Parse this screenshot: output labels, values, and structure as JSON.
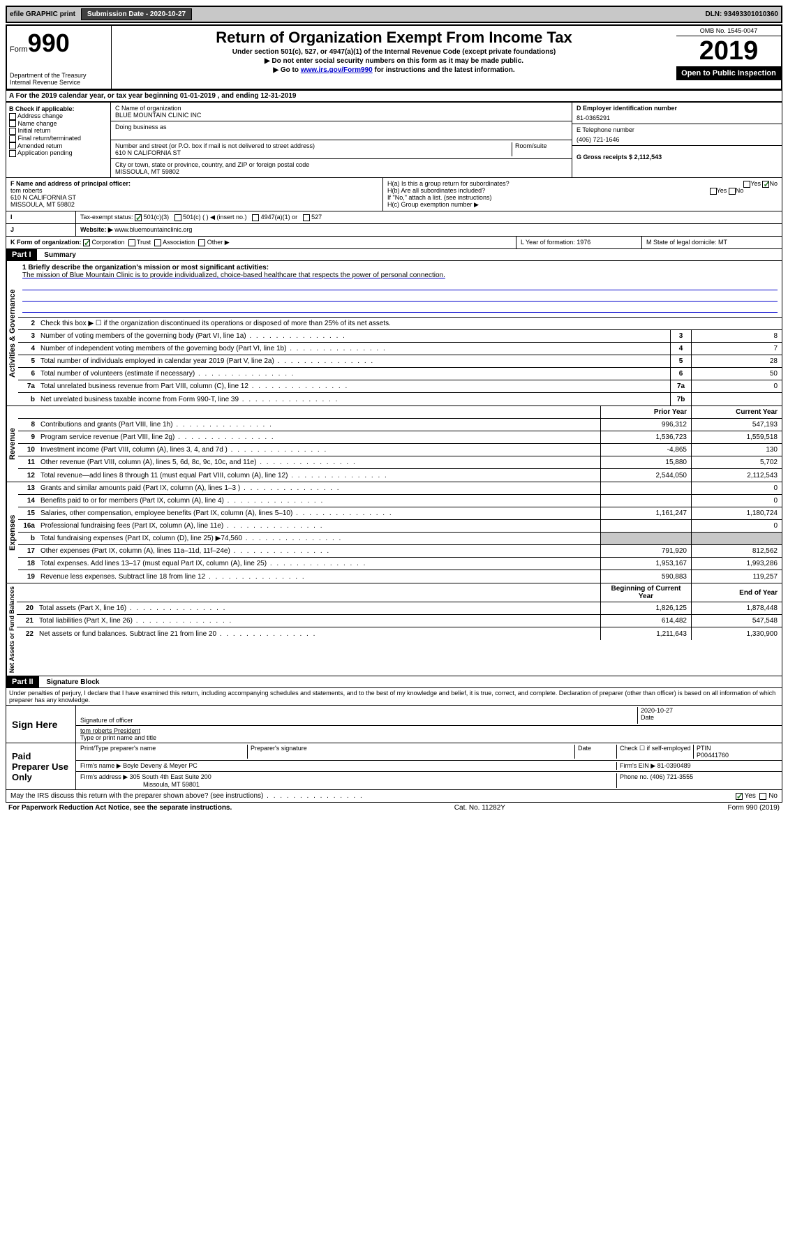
{
  "topbar": {
    "efile": "efile GRAPHIC print",
    "submission_label": "Submission Date - 2020-10-27",
    "dln_label": "DLN: 93493301010360"
  },
  "header": {
    "form_label": "Form",
    "form_number": "990",
    "dept": "Department of the Treasury",
    "irs": "Internal Revenue Service",
    "title": "Return of Organization Exempt From Income Tax",
    "subtitle1": "Under section 501(c), 527, or 4947(a)(1) of the Internal Revenue Code (except private foundations)",
    "subtitle2": "▶ Do not enter social security numbers on this form as it may be made public.",
    "subtitle3_pre": "▶ Go to ",
    "subtitle3_link": "www.irs.gov/Form990",
    "subtitle3_post": " for instructions and the latest information.",
    "omb": "OMB No. 1545-0047",
    "year": "2019",
    "open": "Open to Public Inspection"
  },
  "section_a": "A For the 2019 calendar year, or tax year beginning 01-01-2019    , and ending 12-31-2019",
  "box_b": {
    "label": "B Check if applicable:",
    "items": [
      "Address change",
      "Name change",
      "Initial return",
      "Final return/terminated",
      "Amended return",
      "Application pending"
    ]
  },
  "box_c": {
    "name_label": "C Name of organization",
    "name": "BLUE MOUNTAIN CLINIC INC",
    "dba_label": "Doing business as",
    "addr_label": "Number and street (or P.O. box if mail is not delivered to street address)",
    "room_label": "Room/suite",
    "addr": "610 N CALIFORNIA ST",
    "city_label": "City or town, state or province, country, and ZIP or foreign postal code",
    "city": "MISSOULA, MT  59802"
  },
  "box_d": {
    "ein_label": "D Employer identification number",
    "ein": "81-0365291",
    "phone_label": "E Telephone number",
    "phone": "(406) 721-1646",
    "gross_label": "G Gross receipts $ 2,112,543"
  },
  "box_f": {
    "label": "F Name and address of principal officer:",
    "name": "tom roberts",
    "addr1": "610 N CALIFORNIA ST",
    "addr2": "MISSOULA, MT  59802"
  },
  "box_h": {
    "ha": "H(a)  Is this a group return for subordinates?",
    "hb": "H(b)  Are all subordinates included?",
    "hb_note": "If \"No,\" attach a list. (see instructions)",
    "hc": "H(c)  Group exemption number ▶",
    "yes": "Yes",
    "no": "No"
  },
  "box_i": {
    "label": "Tax-exempt status:",
    "opt1": "501(c)(3)",
    "opt2": "501(c) (   ) ◀ (insert no.)",
    "opt3": "4947(a)(1) or",
    "opt4": "527"
  },
  "box_j": {
    "label": "Website: ▶",
    "url": "www.bluemountainclinic.org"
  },
  "box_k": {
    "label": "K Form of organization:",
    "corp": "Corporation",
    "trust": "Trust",
    "assoc": "Association",
    "other": "Other ▶"
  },
  "box_l": {
    "label": "L Year of formation: 1976"
  },
  "box_m": {
    "label": "M State of legal domicile: MT"
  },
  "part1": {
    "header": "Part I",
    "title": "Summary",
    "line1_label": "1  Briefly describe the organization's mission or most significant activities:",
    "mission": "The mission of Blue Mountain Clinic is to provide individualized, choice-based healthcare that respects the power of personal connection.",
    "line2": "Check this box ▶ ☐  if the organization discontinued its operations or disposed of more than 25% of its net assets.",
    "lines_gov": [
      {
        "n": "3",
        "t": "Number of voting members of the governing body (Part VI, line 1a)",
        "b": "3",
        "v": "8"
      },
      {
        "n": "4",
        "t": "Number of independent voting members of the governing body (Part VI, line 1b)",
        "b": "4",
        "v": "7"
      },
      {
        "n": "5",
        "t": "Total number of individuals employed in calendar year 2019 (Part V, line 2a)",
        "b": "5",
        "v": "28"
      },
      {
        "n": "6",
        "t": "Total number of volunteers (estimate if necessary)",
        "b": "6",
        "v": "50"
      },
      {
        "n": "7a",
        "t": "Total unrelated business revenue from Part VIII, column (C), line 12",
        "b": "7a",
        "v": "0"
      },
      {
        "n": "b",
        "t": "Net unrelated business taxable income from Form 990-T, line 39",
        "b": "7b",
        "v": ""
      }
    ],
    "col_prior": "Prior Year",
    "col_current": "Current Year",
    "lines_rev": [
      {
        "n": "8",
        "t": "Contributions and grants (Part VIII, line 1h)",
        "p": "996,312",
        "c": "547,193"
      },
      {
        "n": "9",
        "t": "Program service revenue (Part VIII, line 2g)",
        "p": "1,536,723",
        "c": "1,559,518"
      },
      {
        "n": "10",
        "t": "Investment income (Part VIII, column (A), lines 3, 4, and 7d )",
        "p": "-4,865",
        "c": "130"
      },
      {
        "n": "11",
        "t": "Other revenue (Part VIII, column (A), lines 5, 6d, 8c, 9c, 10c, and 11e)",
        "p": "15,880",
        "c": "5,702"
      },
      {
        "n": "12",
        "t": "Total revenue—add lines 8 through 11 (must equal Part VIII, column (A), line 12)",
        "p": "2,544,050",
        "c": "2,112,543"
      }
    ],
    "lines_exp": [
      {
        "n": "13",
        "t": "Grants and similar amounts paid (Part IX, column (A), lines 1–3 )",
        "p": "",
        "c": "0"
      },
      {
        "n": "14",
        "t": "Benefits paid to or for members (Part IX, column (A), line 4)",
        "p": "",
        "c": "0"
      },
      {
        "n": "15",
        "t": "Salaries, other compensation, employee benefits (Part IX, column (A), lines 5–10)",
        "p": "1,161,247",
        "c": "1,180,724"
      },
      {
        "n": "16a",
        "t": "Professional fundraising fees (Part IX, column (A), line 11e)",
        "p": "",
        "c": "0"
      },
      {
        "n": "b",
        "t": "Total fundraising expenses (Part IX, column (D), line 25) ▶74,560",
        "p": "",
        "c": ""
      },
      {
        "n": "17",
        "t": "Other expenses (Part IX, column (A), lines 11a–11d, 11f–24e)",
        "p": "791,920",
        "c": "812,562"
      },
      {
        "n": "18",
        "t": "Total expenses. Add lines 13–17 (must equal Part IX, column (A), line 25)",
        "p": "1,953,167",
        "c": "1,993,286"
      },
      {
        "n": "19",
        "t": "Revenue less expenses. Subtract line 18 from line 12",
        "p": "590,883",
        "c": "119,257"
      }
    ],
    "col_begin": "Beginning of Current Year",
    "col_end": "End of Year",
    "lines_net": [
      {
        "n": "20",
        "t": "Total assets (Part X, line 16)",
        "p": "1,826,125",
        "c": "1,878,448"
      },
      {
        "n": "21",
        "t": "Total liabilities (Part X, line 26)",
        "p": "614,482",
        "c": "547,548"
      },
      {
        "n": "22",
        "t": "Net assets or fund balances. Subtract line 21 from line 20",
        "p": "1,211,643",
        "c": "1,330,900"
      }
    ]
  },
  "part2": {
    "header": "Part II",
    "title": "Signature Block",
    "declaration": "Under penalties of perjury, I declare that I have examined this return, including accompanying schedules and statements, and to the best of my knowledge and belief, it is true, correct, and complete. Declaration of preparer (other than officer) is based on all information of which preparer has any knowledge."
  },
  "sign": {
    "label": "Sign Here",
    "sig_officer": "Signature of officer",
    "date": "2020-10-27",
    "date_label": "Date",
    "name": "tom roberts  President",
    "name_label": "Type or print name and title"
  },
  "preparer": {
    "label": "Paid Preparer Use Only",
    "print_label": "Print/Type preparer's name",
    "sig_label": "Preparer's signature",
    "date_label": "Date",
    "check_label": "Check ☐ if self-employed",
    "ptin_label": "PTIN",
    "ptin": "P00441760",
    "firm_name_label": "Firm's name    ▶",
    "firm_name": "Boyle Deveny & Meyer PC",
    "firm_ein_label": "Firm's EIN ▶ 81-0390489",
    "firm_addr_label": "Firm's address ▶",
    "firm_addr1": "305 South 4th East Suite 200",
    "firm_addr2": "Missoula, MT  59801",
    "firm_phone": "Phone no. (406) 721-3555"
  },
  "footer": {
    "discuss": "May the IRS discuss this return with the preparer shown above? (see instructions)",
    "yes": "Yes",
    "no": "No",
    "paperwork": "For Paperwork Reduction Act Notice, see the separate instructions.",
    "cat": "Cat. No. 11282Y",
    "form": "Form 990 (2019)"
  },
  "vert_labels": {
    "gov": "Activities & Governance",
    "rev": "Revenue",
    "exp": "Expenses",
    "net": "Net Assets or Fund Balances"
  }
}
